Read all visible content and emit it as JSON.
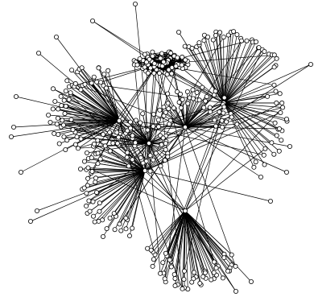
{
  "diagram": {
    "type": "network-graph",
    "background": "#ffffff",
    "edge_color": "#000000",
    "node_fill": "#ffffff",
    "node_stroke": "#000000",
    "labels": []
  }
}
